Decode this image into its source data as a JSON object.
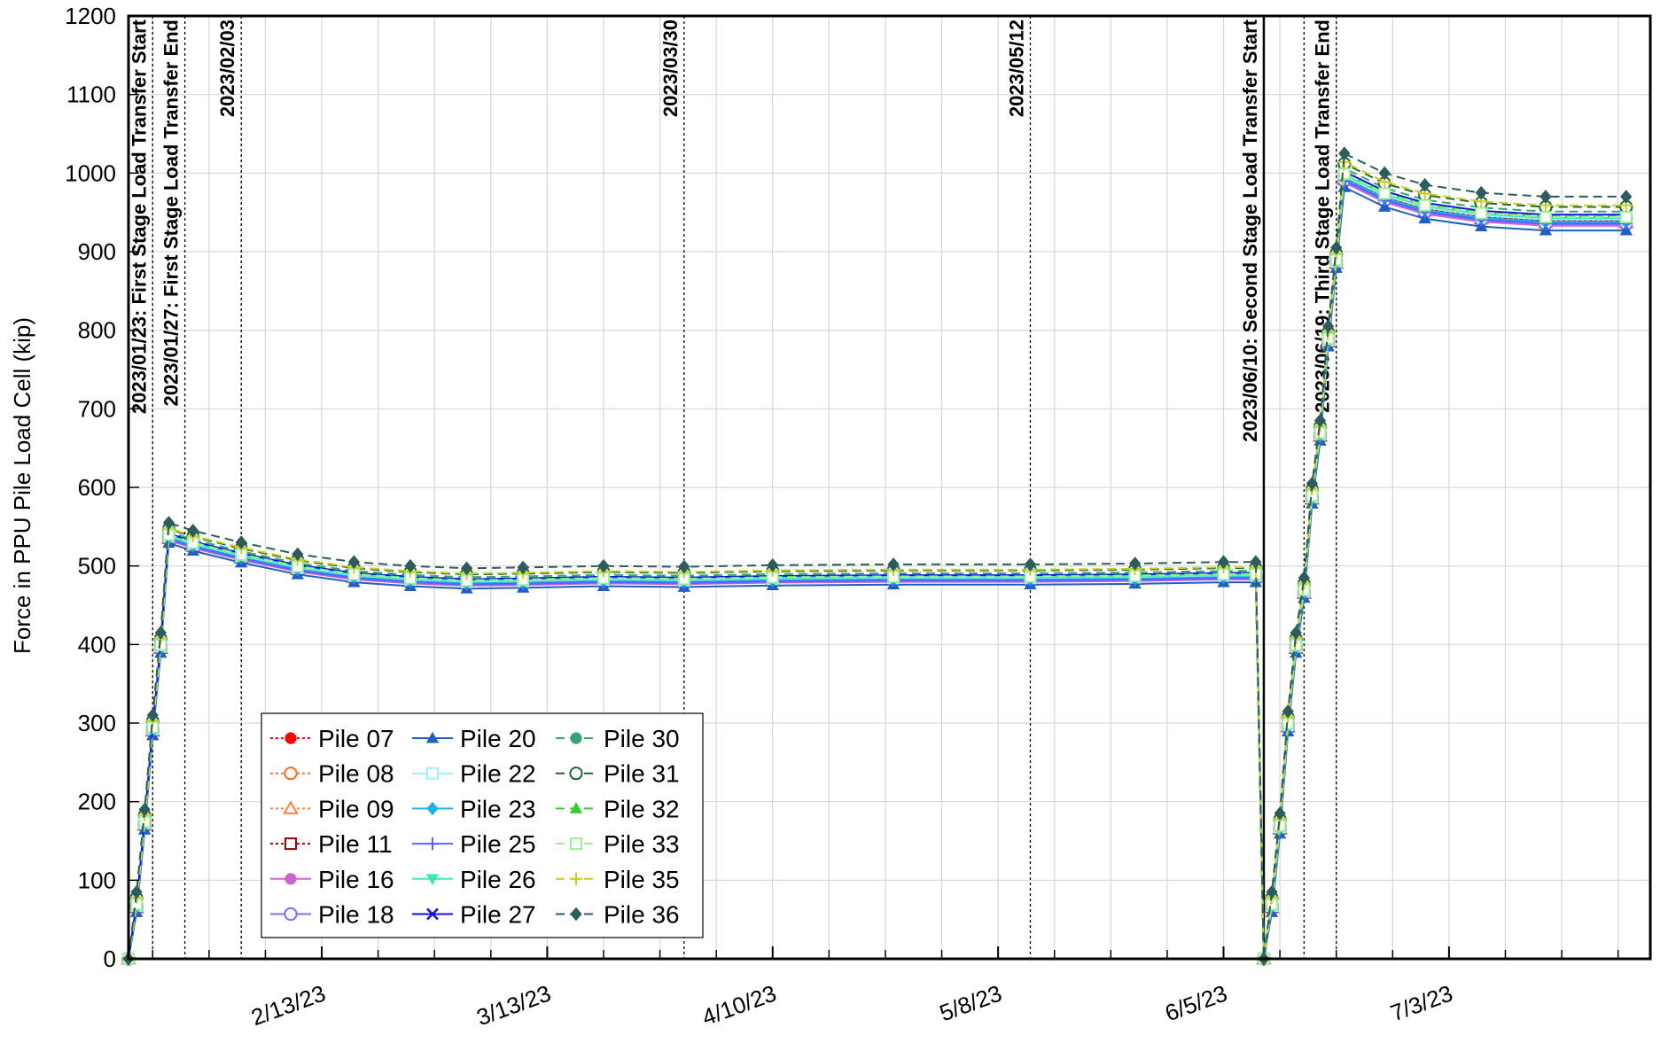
{
  "chart_data": {
    "type": "line",
    "title": "",
    "xlabel": "",
    "ylabel": "Force in PPU Pile Load Cell (kip)",
    "x_start": "2023-01-20",
    "x_end": "2023-07-28",
    "ylim": [
      0,
      1200
    ],
    "yticks": [
      0,
      100,
      200,
      300,
      400,
      500,
      600,
      700,
      800,
      900,
      1000,
      1100,
      1200
    ],
    "xticks": [
      {
        "date": "2023-02-13",
        "label": "2/13/23"
      },
      {
        "date": "2023-03-13",
        "label": "3/13/23"
      },
      {
        "date": "2023-04-10",
        "label": "4/10/23"
      },
      {
        "date": "2023-05-08",
        "label": "5/8/23"
      },
      {
        "date": "2023-06-05",
        "label": "6/5/23"
      },
      {
        "date": "2023-07-03",
        "label": "7/3/23"
      }
    ],
    "grid": true,
    "legend_position": "bottom-left",
    "events": [
      {
        "date": "2023-01-23",
        "label": "2023/01/23: First Stage Load Transfer Start",
        "style": "dotted"
      },
      {
        "date": "2023-01-27",
        "label": "2023/01/27: First Stage Load Transfer End",
        "style": "dotted"
      },
      {
        "date": "2023-02-03",
        "label": "2023/02/03",
        "style": "dotted"
      },
      {
        "date": "2023-03-30",
        "label": "2023/03/30",
        "style": "dotted"
      },
      {
        "date": "2023-05-12",
        "label": "2023/05/12",
        "style": "dotted"
      },
      {
        "date": "2023-06-10",
        "label": "2023/06/10: Second Stage Load Transfer Start",
        "style": "solid"
      },
      {
        "date": "2023-06-15",
        "label": "",
        "style": "dotted"
      },
      {
        "date": "2023-06-19",
        "label": "2023/06/19: Third Stage Load Transfer End",
        "style": "dotted"
      }
    ],
    "profile": [
      {
        "date": "2023-01-20",
        "value": 0
      },
      {
        "date": "2023-01-21",
        "value": 70
      },
      {
        "date": "2023-01-22",
        "value": 175
      },
      {
        "date": "2023-01-23",
        "value": 295
      },
      {
        "date": "2023-01-24",
        "value": 400
      },
      {
        "date": "2023-01-25",
        "value": 540
      },
      {
        "date": "2023-01-28",
        "value": 530
      },
      {
        "date": "2023-02-03",
        "value": 515
      },
      {
        "date": "2023-02-10",
        "value": 500
      },
      {
        "date": "2023-02-17",
        "value": 490
      },
      {
        "date": "2023-02-24",
        "value": 485
      },
      {
        "date": "2023-03-03",
        "value": 482
      },
      {
        "date": "2023-03-10",
        "value": 483
      },
      {
        "date": "2023-03-20",
        "value": 485
      },
      {
        "date": "2023-03-30",
        "value": 484
      },
      {
        "date": "2023-04-10",
        "value": 486
      },
      {
        "date": "2023-04-25",
        "value": 487
      },
      {
        "date": "2023-05-12",
        "value": 487
      },
      {
        "date": "2023-05-25",
        "value": 488
      },
      {
        "date": "2023-06-05",
        "value": 490
      },
      {
        "date": "2023-06-09",
        "value": 490
      },
      {
        "date": "2023-06-10",
        "value": 0
      },
      {
        "date": "2023-06-11",
        "value": 70
      },
      {
        "date": "2023-06-12",
        "value": 170
      },
      {
        "date": "2023-06-13",
        "value": 300
      },
      {
        "date": "2023-06-14",
        "value": 400
      },
      {
        "date": "2023-06-15",
        "value": 470
      },
      {
        "date": "2023-06-16",
        "value": 590
      },
      {
        "date": "2023-06-17",
        "value": 670
      },
      {
        "date": "2023-06-18",
        "value": 790
      },
      {
        "date": "2023-06-19",
        "value": 890
      },
      {
        "date": "2023-06-20",
        "value": 1000
      },
      {
        "date": "2023-06-25",
        "value": 975
      },
      {
        "date": "2023-06-30",
        "value": 960
      },
      {
        "date": "2023-07-07",
        "value": 950
      },
      {
        "date": "2023-07-15",
        "value": 945
      },
      {
        "date": "2023-07-25",
        "value": 945
      }
    ],
    "series": [
      {
        "name": "Pile 07",
        "color": "#ff0000",
        "dash": "dotted",
        "marker": "filled-circle",
        "offset": -5
      },
      {
        "name": "Pile 08",
        "color": "#ff6a1a",
        "dash": "dotted",
        "marker": "open-circle",
        "offset": -3
      },
      {
        "name": "Pile 09",
        "color": "#ff8040",
        "dash": "dotted",
        "marker": "open-triangle",
        "offset": -8
      },
      {
        "name": "Pile 11",
        "color": "#a00000",
        "dash": "dotted",
        "marker": "open-square",
        "offset": -6
      },
      {
        "name": "Pile 16",
        "color": "#cc66cc",
        "dash": "solid",
        "marker": "filled-circle",
        "offset": -12
      },
      {
        "name": "Pile 18",
        "color": "#8866ff",
        "dash": "solid",
        "marker": "open-circle",
        "offset": -10
      },
      {
        "name": "Pile 20",
        "color": "#1f5fbf",
        "dash": "solid",
        "marker": "filled-triangle",
        "offset": -18
      },
      {
        "name": "Pile 22",
        "color": "#99f2ff",
        "dash": "solid",
        "marker": "open-square",
        "offset": -4
      },
      {
        "name": "Pile 23",
        "color": "#19b3e6",
        "dash": "solid",
        "marker": "filled-diamond",
        "offset": -7
      },
      {
        "name": "Pile 25",
        "color": "#5566ff",
        "dash": "solid",
        "marker": "plus",
        "offset": -9
      },
      {
        "name": "Pile 26",
        "color": "#40e6b3",
        "dash": "solid",
        "marker": "filled-triangle-down",
        "offset": -2
      },
      {
        "name": "Pile 27",
        "color": "#1111dd",
        "dash": "solid",
        "marker": "cross",
        "offset": 2
      },
      {
        "name": "Pile 30",
        "color": "#33a673",
        "dash": "dashed",
        "marker": "filled-circle",
        "offset": 6
      },
      {
        "name": "Pile 31",
        "color": "#1a6633",
        "dash": "dashed",
        "marker": "open-circle",
        "offset": 12
      },
      {
        "name": "Pile 32",
        "color": "#33cc33",
        "dash": "dashed",
        "marker": "filled-triangle",
        "offset": 0
      },
      {
        "name": "Pile 33",
        "color": "#99ee99",
        "dash": "dashed",
        "marker": "open-square",
        "offset": -1
      },
      {
        "name": "Pile 35",
        "color": "#cccc22",
        "dash": "dashed",
        "marker": "plus",
        "offset": 14
      },
      {
        "name": "Pile 36",
        "color": "#2e5c5c",
        "dash": "dashed",
        "marker": "filled-diamond",
        "offset": 25
      }
    ]
  }
}
